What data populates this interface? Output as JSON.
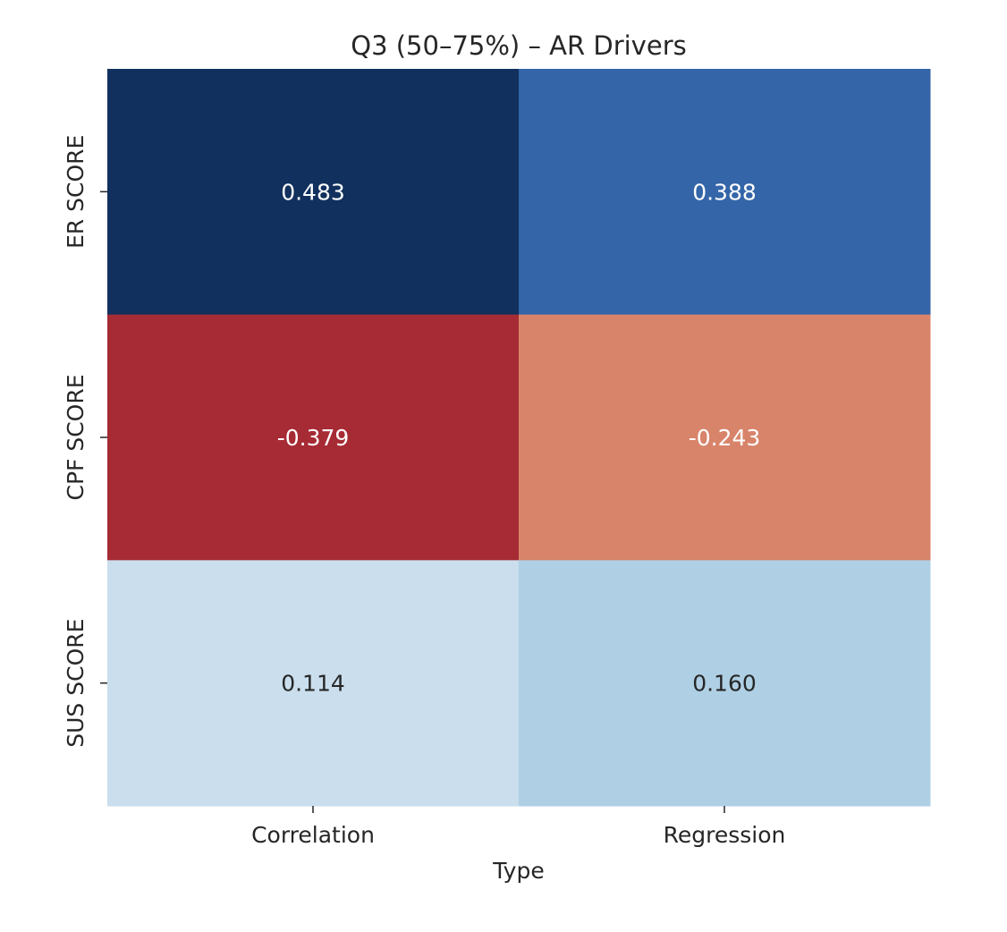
{
  "chart_data": {
    "type": "heatmap",
    "title": "Q3 (50–75%) – AR Drivers",
    "xlabel": "Type",
    "ylabel": "",
    "x_categories": [
      "Correlation",
      "Regression"
    ],
    "y_categories": [
      "ER SCORE",
      "CPF SCORE",
      "SUS SCORE"
    ],
    "values": [
      [
        0.483,
        0.388
      ],
      [
        -0.379,
        -0.243
      ],
      [
        0.114,
        0.16
      ]
    ],
    "value_labels": [
      [
        "0.483",
        "0.388"
      ],
      [
        "-0.379",
        "-0.243"
      ],
      [
        "0.114",
        "0.160"
      ]
    ],
    "colormap": "RdBu",
    "colorbar": false,
    "cell_colors": [
      [
        "#11305d",
        "#3465a8"
      ],
      [
        "#a62b34",
        "#d8846b"
      ],
      [
        "#cadeed",
        "#afd0e4"
      ]
    ],
    "label_colors": [
      [
        "#ffffff",
        "#ffffff"
      ],
      [
        "#ffffff",
        "#ffffff"
      ],
      [
        "#262626",
        "#262626"
      ]
    ]
  }
}
